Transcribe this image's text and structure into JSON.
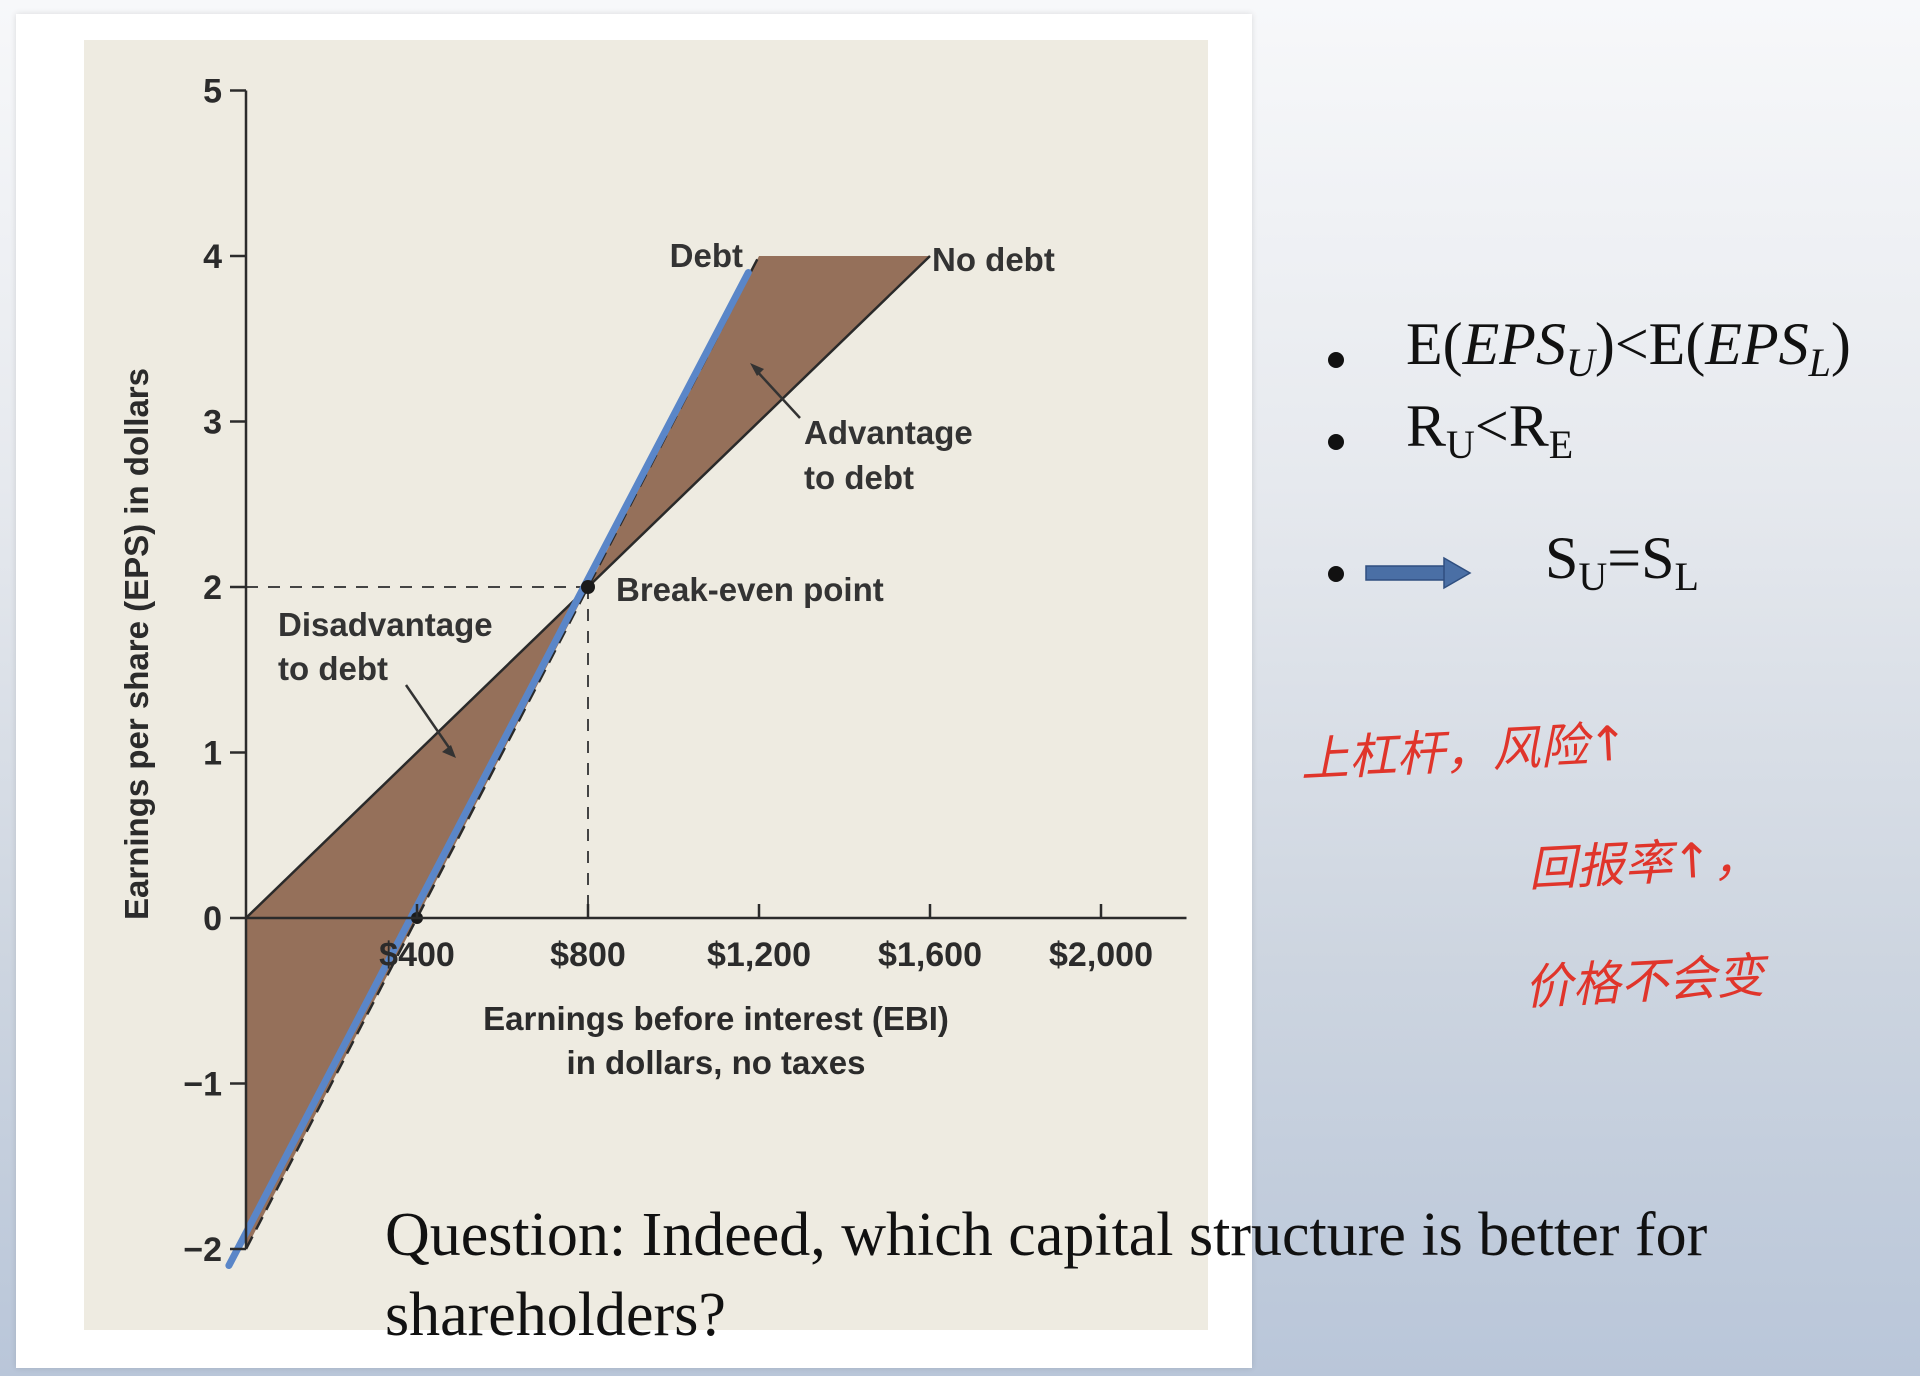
{
  "chart_data": {
    "type": "line",
    "xlabel": [
      "Earnings before interest (EBI)",
      "in dollars, no taxes"
    ],
    "ylabel": "Earnings per share (EPS) in dollars",
    "xlim": [
      0,
      2200
    ],
    "ylim": [
      -2,
      5
    ],
    "x_ticks": [
      400,
      800,
      1200,
      1600,
      2000
    ],
    "x_tick_labels": [
      "$400",
      "$800",
      "$1,200",
      "$1,600",
      "$2,000"
    ],
    "y_ticks": [
      -2,
      -1,
      0,
      1,
      2,
      3,
      4,
      5
    ],
    "y_tick_labels": [
      "−2",
      "−1",
      "0",
      "1",
      "2",
      "3",
      "4",
      "5"
    ],
    "series": [
      {
        "name": "No debt",
        "x": [
          0,
          800,
          1600
        ],
        "y": [
          0,
          2,
          4
        ]
      },
      {
        "name": "Debt",
        "x": [
          0,
          400,
          800,
          1200
        ],
        "y": [
          -2,
          0,
          2,
          4
        ]
      }
    ],
    "break_even": {
      "x": 800,
      "y": 2
    },
    "annotations": {
      "debt": "Debt",
      "no_debt": "No debt",
      "advantage": [
        "Advantage",
        "to debt"
      ],
      "disadvantage": [
        "Disadvantage",
        "to debt"
      ],
      "break_even": "Break-even point"
    },
    "colors": {
      "fill": "#95705a",
      "plot_bg": "#eeebe1",
      "overlay_line": "#5a86c8",
      "axis": "#2b2b2b"
    },
    "grid": false
  },
  "bullets": {
    "b1": {
      "e1": "E(",
      "eps1": "EPS",
      "sub1": "U",
      "mid": ")<E(",
      "eps2": "EPS",
      "sub2": "L",
      "end": ")"
    },
    "b2": {
      "r1": "R",
      "sub1": "U",
      "lt": "<R",
      "sub2": "E"
    },
    "b3": {
      "s1": "S",
      "sub1": "U",
      "eq": "=S",
      "sub2": "L",
      "arrow_color": "#4a6fa5"
    }
  },
  "question": "Question: Indeed, which capital structure is better for shareholders?",
  "handwritten": {
    "line1": "上杠杆，风险↑",
    "line2": "回报率↑，",
    "line3": "价格不会变",
    "color": "#e0352b"
  }
}
